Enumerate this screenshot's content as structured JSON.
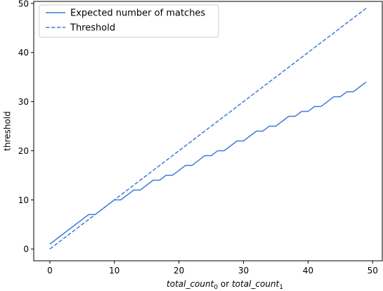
{
  "chart_data": {
    "type": "line",
    "title": "",
    "xlabel": "total_count0 or total_count1",
    "xlabel_parts": {
      "a": "total_count",
      "a_sub": "0",
      "or": " or ",
      "b": "total_count",
      "b_sub": "1"
    },
    "ylabel": "threshold",
    "xlim": [
      -2.5,
      51.5
    ],
    "ylim": [
      -2.4,
      50.4
    ],
    "xticks": [
      0,
      10,
      20,
      30,
      40,
      50
    ],
    "yticks": [
      0,
      10,
      20,
      30,
      40,
      50
    ],
    "grid": false,
    "legend_position": "top-left",
    "series": [
      {
        "name": "Expected number of matches",
        "style": "solid",
        "color": "#3f7bdb",
        "x": [
          0,
          1,
          2,
          3,
          4,
          5,
          6,
          7,
          8,
          9,
          10,
          11,
          12,
          13,
          14,
          15,
          16,
          17,
          18,
          19,
          20,
          21,
          22,
          23,
          24,
          25,
          26,
          27,
          28,
          29,
          30,
          31,
          32,
          33,
          34,
          35,
          36,
          37,
          38,
          39,
          40,
          41,
          42,
          43,
          44,
          45,
          46,
          47,
          48,
          49
        ],
        "y": [
          1,
          2,
          3,
          4,
          5,
          6,
          7,
          7,
          8,
          9,
          10,
          10,
          11,
          12,
          12,
          13,
          14,
          14,
          15,
          15,
          16,
          17,
          17,
          18,
          19,
          19,
          20,
          20,
          21,
          22,
          22,
          23,
          24,
          24,
          25,
          25,
          26,
          27,
          27,
          28,
          28,
          29,
          29,
          30,
          31,
          31,
          32,
          32,
          33,
          34
        ]
      },
      {
        "name": "Threshold",
        "style": "dashed",
        "color": "#3f7bdb",
        "x": [
          0,
          1,
          2,
          3,
          4,
          5,
          6,
          7,
          8,
          9,
          10,
          11,
          12,
          13,
          14,
          15,
          16,
          17,
          18,
          19,
          20,
          21,
          22,
          23,
          24,
          25,
          26,
          27,
          28,
          29,
          30,
          31,
          32,
          33,
          34,
          35,
          36,
          37,
          38,
          39,
          40,
          41,
          42,
          43,
          44,
          45,
          46,
          47,
          48,
          49
        ],
        "y": [
          0,
          1,
          2,
          3,
          4,
          5,
          6,
          7,
          8,
          9,
          10,
          11,
          12,
          13,
          14,
          15,
          16,
          17,
          18,
          19,
          20,
          21,
          22,
          23,
          24,
          25,
          26,
          27,
          28,
          29,
          30,
          31,
          32,
          33,
          34,
          35,
          36,
          37,
          38,
          39,
          40,
          41,
          42,
          43,
          44,
          45,
          46,
          47,
          48,
          49
        ]
      }
    ]
  }
}
